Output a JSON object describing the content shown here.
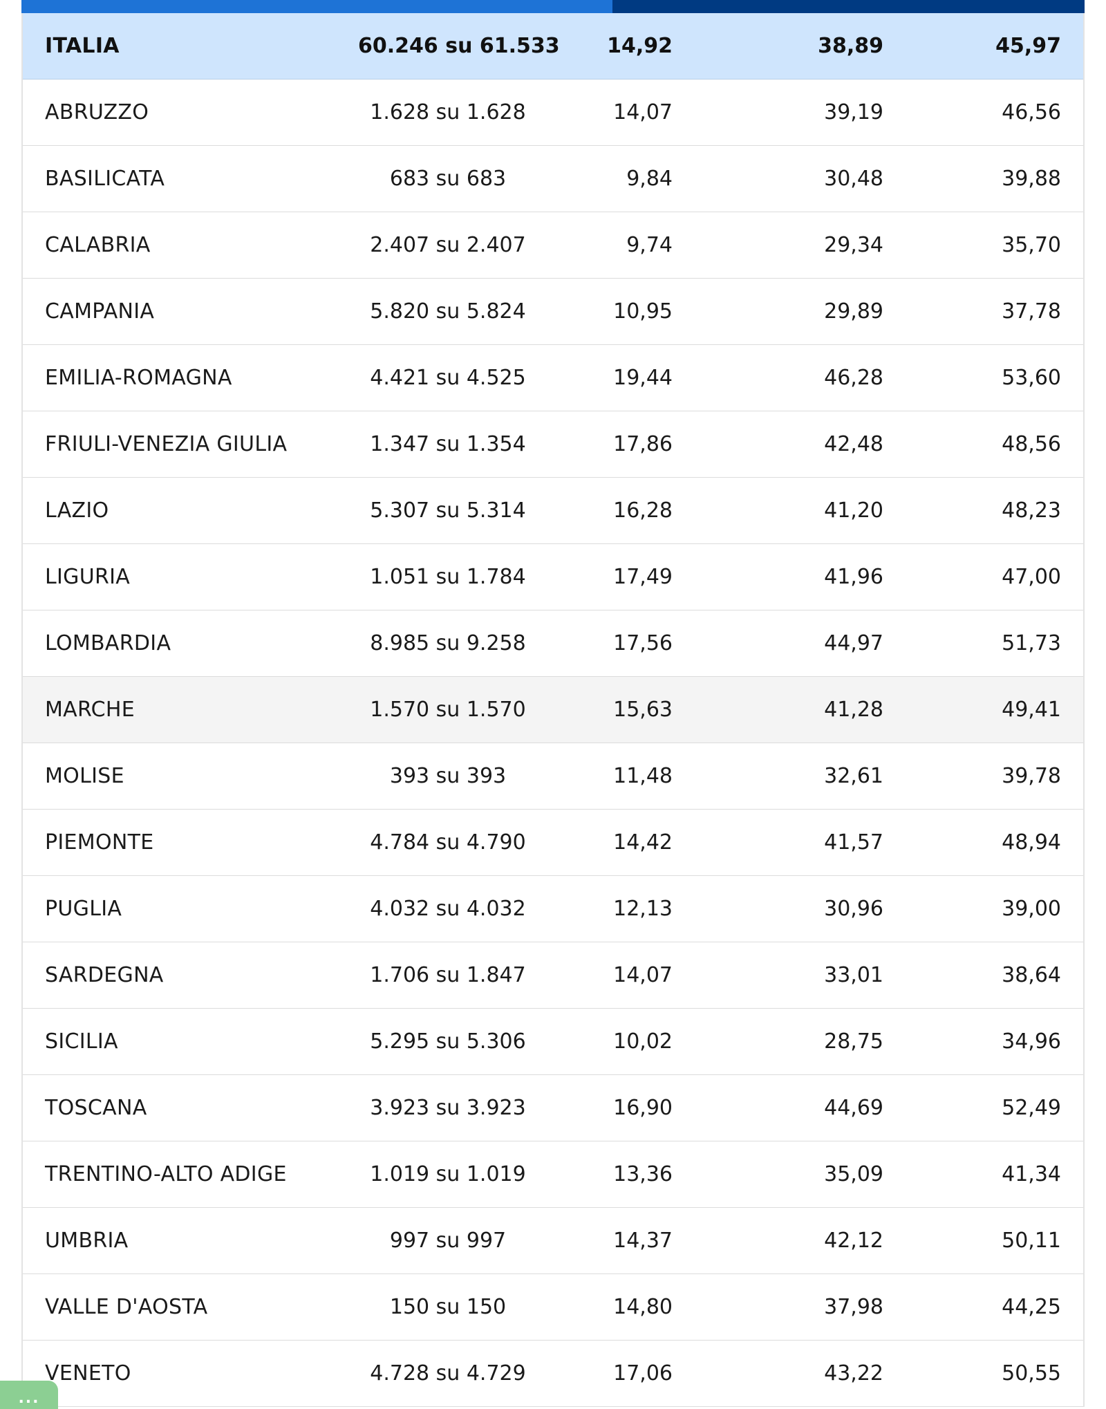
{
  "colors": {
    "header_bar_light": "#1e73d6",
    "header_bar_dark": "#003a82",
    "total_row_bg": "#cfe5fd",
    "highlight_row_bg": "#f4f4f4",
    "fab_bg": "#8ccf93"
  },
  "table": {
    "total": {
      "name": "ITALIA",
      "sezioni": "60.246 su 61.533",
      "v1": "14,92",
      "v2": "38,89",
      "v3": "45,97"
    },
    "rows": [
      {
        "name": "ABRUZZO",
        "sezioni": "1.628 su 1.628",
        "v1": "14,07",
        "v2": "39,19",
        "v3": "46,56"
      },
      {
        "name": "BASILICATA",
        "sezioni": "683 su 683",
        "v1": "9,84",
        "v2": "30,48",
        "v3": "39,88"
      },
      {
        "name": "CALABRIA",
        "sezioni": "2.407 su 2.407",
        "v1": "9,74",
        "v2": "29,34",
        "v3": "35,70"
      },
      {
        "name": "CAMPANIA",
        "sezioni": "5.820 su 5.824",
        "v1": "10,95",
        "v2": "29,89",
        "v3": "37,78"
      },
      {
        "name": "EMILIA-ROMAGNA",
        "sezioni": "4.421 su 4.525",
        "v1": "19,44",
        "v2": "46,28",
        "v3": "53,60"
      },
      {
        "name": "FRIULI-VENEZIA GIULIA",
        "sezioni": "1.347 su 1.354",
        "v1": "17,86",
        "v2": "42,48",
        "v3": "48,56"
      },
      {
        "name": "LAZIO",
        "sezioni": "5.307 su 5.314",
        "v1": "16,28",
        "v2": "41,20",
        "v3": "48,23"
      },
      {
        "name": "LIGURIA",
        "sezioni": "1.051 su 1.784",
        "v1": "17,49",
        "v2": "41,96",
        "v3": "47,00"
      },
      {
        "name": "LOMBARDIA",
        "sezioni": "8.985 su 9.258",
        "v1": "17,56",
        "v2": "44,97",
        "v3": "51,73"
      },
      {
        "name": "MARCHE",
        "sezioni": "1.570 su 1.570",
        "v1": "15,63",
        "v2": "41,28",
        "v3": "49,41"
      },
      {
        "name": "MOLISE",
        "sezioni": "393 su 393",
        "v1": "11,48",
        "v2": "32,61",
        "v3": "39,78"
      },
      {
        "name": "PIEMONTE",
        "sezioni": "4.784 su 4.790",
        "v1": "14,42",
        "v2": "41,57",
        "v3": "48,94"
      },
      {
        "name": "PUGLIA",
        "sezioni": "4.032 su 4.032",
        "v1": "12,13",
        "v2": "30,96",
        "v3": "39,00"
      },
      {
        "name": "SARDEGNA",
        "sezioni": "1.706 su 1.847",
        "v1": "14,07",
        "v2": "33,01",
        "v3": "38,64"
      },
      {
        "name": "SICILIA",
        "sezioni": "5.295 su 5.306",
        "v1": "10,02",
        "v2": "28,75",
        "v3": "34,96"
      },
      {
        "name": "TOSCANA",
        "sezioni": "3.923 su 3.923",
        "v1": "16,90",
        "v2": "44,69",
        "v3": "52,49"
      },
      {
        "name": "TRENTINO-ALTO ADIGE",
        "sezioni": "1.019 su 1.019",
        "v1": "13,36",
        "v2": "35,09",
        "v3": "41,34"
      },
      {
        "name": "UMBRIA",
        "sezioni": "997 su 997",
        "v1": "14,37",
        "v2": "42,12",
        "v3": "50,11"
      },
      {
        "name": "VALLE D'AOSTA",
        "sezioni": "150 su 150",
        "v1": "14,80",
        "v2": "37,98",
        "v3": "44,25"
      },
      {
        "name": "VENETO",
        "sezioni": "4.728 su 4.729",
        "v1": "17,06",
        "v2": "43,22",
        "v3": "50,55"
      }
    ]
  },
  "fab": {
    "label": "...",
    "icon": "more-dots-icon"
  }
}
